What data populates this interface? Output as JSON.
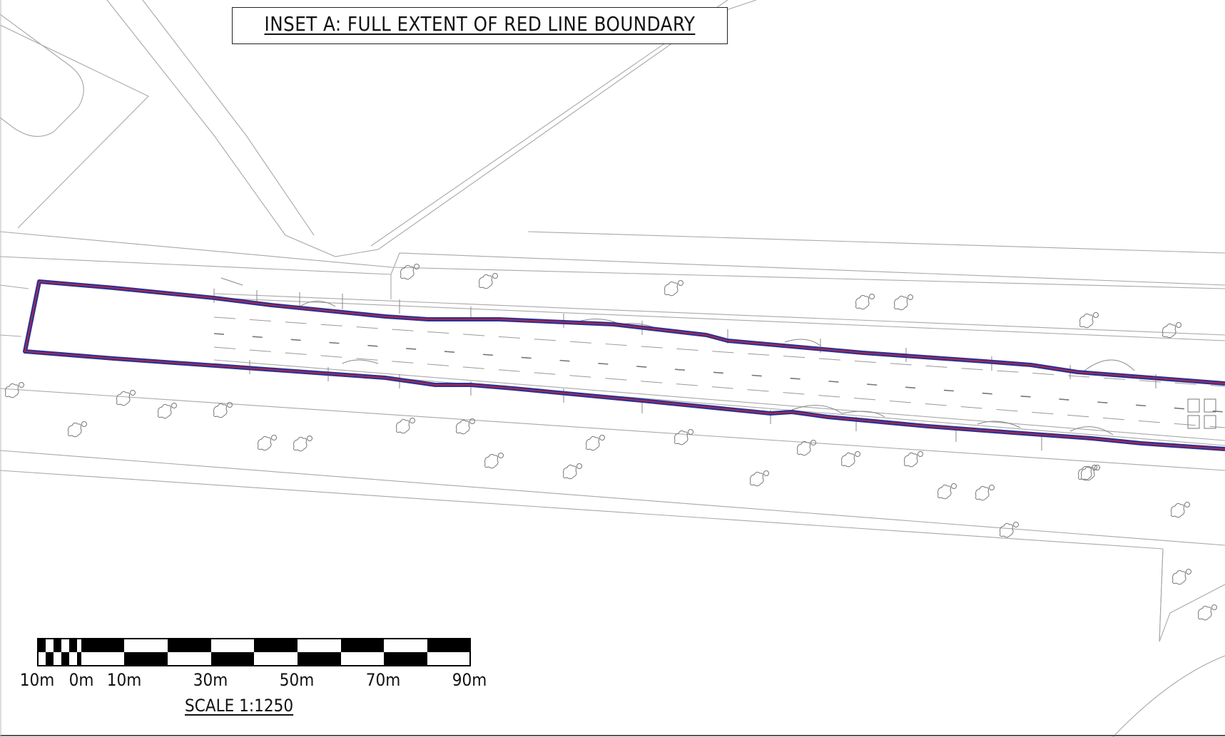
{
  "inset": {
    "title": "INSET A: FULL EXTENT OF RED LINE BOUNDARY"
  },
  "scale": {
    "ticks": [
      "10m",
      "0m",
      "10m",
      "30m",
      "50m",
      "70m",
      "90m"
    ],
    "caption": "SCALE 1:1250"
  },
  "colors": {
    "boundary_outer": "#2e3192",
    "boundary_inner": "#e0242c",
    "linework": "#9a9a9a",
    "ink": "#111111"
  },
  "features": {
    "boundary": "red-line-boundary",
    "tree_symbol": "tree-icon"
  }
}
